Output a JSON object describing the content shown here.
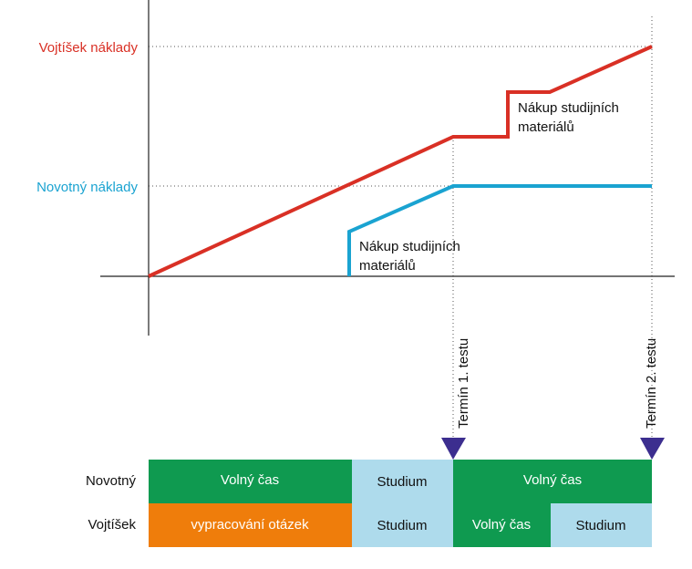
{
  "colors": {
    "vojtisek": "#d93025",
    "novotny": "#1aa3d1",
    "volny_cas": "#0f9a50",
    "studium": "#aedbec",
    "vypracovani": "#ef7d0b",
    "marker": "#3c2e8f",
    "axis": "#222222",
    "guide": "#555555"
  },
  "cost_chart": {
    "y_labels": {
      "vojtisek": "Vojtíšek náklady",
      "novotny": "Novotný náklady"
    },
    "annotations": {
      "novotny_purchase": [
        "Nákup studijních",
        "materiálů"
      ],
      "vojtisek_purchase": [
        "Nákup studijních",
        "materiálů"
      ]
    }
  },
  "milestones": [
    "Termín 1. testu",
    "Termín 2. testu"
  ],
  "timeline": {
    "rows": [
      {
        "label": "Novotný",
        "segments": [
          {
            "label": "Volný čas",
            "kind": "volny_cas"
          },
          {
            "label": "Studium",
            "kind": "studium"
          },
          {
            "label": "Volný čas",
            "kind": "volny_cas"
          }
        ]
      },
      {
        "label": "Vojtíšek",
        "segments": [
          {
            "label": "vypracování otázek",
            "kind": "vypracovani"
          },
          {
            "label": "Studium",
            "kind": "studium"
          },
          {
            "label": "Volný čas",
            "kind": "volny_cas"
          },
          {
            "label": "Studium",
            "kind": "studium"
          }
        ]
      }
    ]
  }
}
